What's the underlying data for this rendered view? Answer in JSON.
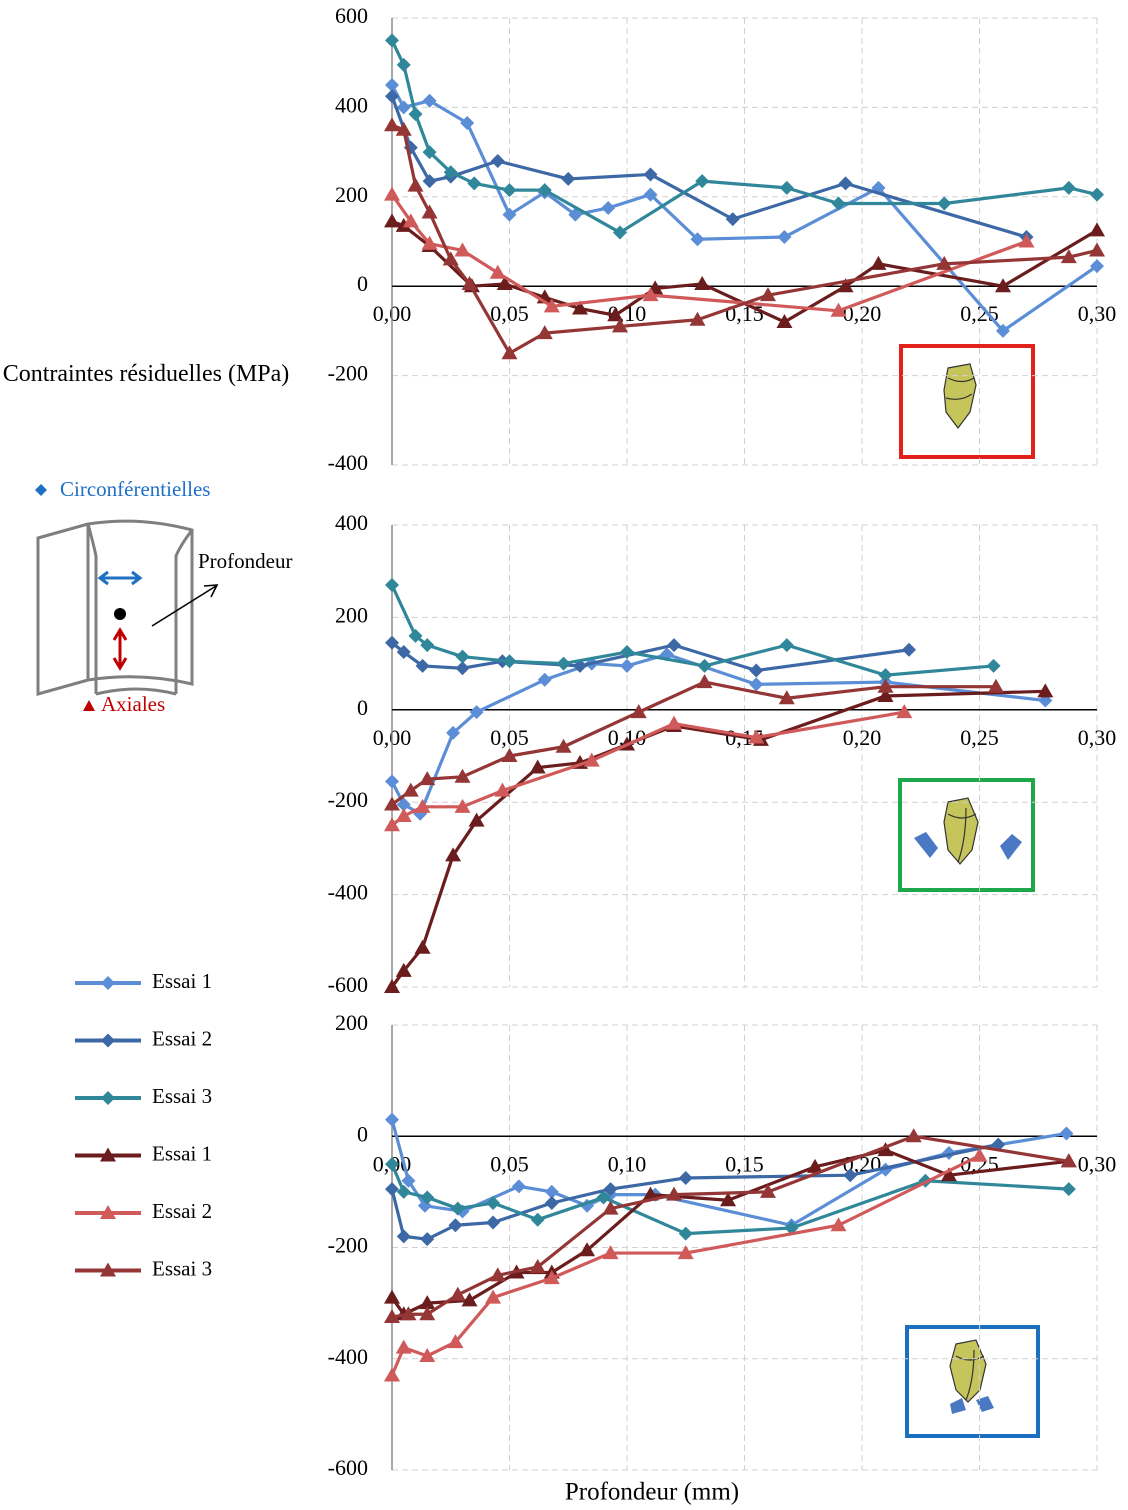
{
  "chart_data": [
    {
      "type": "line",
      "ylabel": "Contraintes résiduelles (MPa)",
      "annotations": [
        "Circonférentielles",
        "Profondeur",
        "Axiales"
      ],
      "xlim": [
        0,
        0.3
      ],
      "xticks": [
        {
          "value": 0,
          "label": "0,00"
        },
        {
          "value": 0.05,
          "label": "0,05"
        },
        {
          "value": 0.1,
          "label": "0,10"
        },
        {
          "value": 0.15,
          "label": "0,15"
        },
        {
          "value": 0.2,
          "label": "0,20"
        },
        {
          "value": 0.25,
          "label": "0,25"
        },
        {
          "value": 0.3,
          "label": "0,30"
        }
      ],
      "ylim": [
        -400,
        600
      ],
      "yticks": [
        -400,
        -200,
        0,
        200,
        400,
        600
      ],
      "grid": true,
      "series": [
        {
          "name": "Essai 1",
          "color": "#5b8ed6",
          "marker": "diamond",
          "x": [
            0,
            0.005,
            0.016,
            0.032,
            0.05,
            0.065,
            0.078,
            0.092,
            0.11,
            0.13,
            0.167,
            0.207,
            0.26,
            0.3
          ],
          "values": [
            450,
            400,
            415,
            365,
            160,
            210,
            160,
            175,
            205,
            105,
            110,
            220,
            -100,
            45
          ]
        },
        {
          "name": "Essai 2",
          "color": "#3d68a6",
          "marker": "diamond",
          "x": [
            0,
            0.008,
            0.016,
            0.025,
            0.045,
            0.075,
            0.11,
            0.145,
            0.193,
            0.27
          ],
          "values": [
            425,
            310,
            235,
            245,
            280,
            240,
            250,
            150,
            230,
            110
          ]
        },
        {
          "name": "Essai 3",
          "color": "#31879a",
          "marker": "diamond",
          "x": [
            0,
            0.005,
            0.01,
            0.016,
            0.025,
            0.035,
            0.05,
            0.065,
            0.097,
            0.132,
            0.168,
            0.19,
            0.235,
            0.288,
            0.3
          ],
          "values": [
            550,
            495,
            385,
            300,
            255,
            230,
            215,
            215,
            120,
            235,
            220,
            185,
            185,
            220,
            205
          ]
        },
        {
          "name": "Essai 1",
          "color": "#6b1c1c",
          "marker": "triangle",
          "x": [
            0,
            0.005,
            0.016,
            0.034,
            0.048,
            0.065,
            0.08,
            0.095,
            0.112,
            0.132,
            0.167,
            0.193,
            0.207,
            0.26,
            0.3
          ],
          "values": [
            145,
            135,
            90,
            0,
            5,
            -25,
            -50,
            -65,
            -5,
            5,
            -80,
            0,
            50,
            0,
            125
          ]
        },
        {
          "name": "Essai 2",
          "color": "#d0595a",
          "marker": "triangle",
          "x": [
            0,
            0.008,
            0.016,
            0.03,
            0.045,
            0.068,
            0.11,
            0.19,
            0.27
          ],
          "values": [
            205,
            145,
            95,
            80,
            30,
            -45,
            -20,
            -55,
            100
          ]
        },
        {
          "name": "Essai 3",
          "color": "#943636",
          "marker": "triangle",
          "x": [
            0,
            0.005,
            0.01,
            0.016,
            0.025,
            0.033,
            0.05,
            0.065,
            0.097,
            0.13,
            0.16,
            0.235,
            0.288,
            0.3
          ],
          "values": [
            360,
            350,
            225,
            165,
            60,
            5,
            -150,
            -105,
            -90,
            -75,
            -20,
            50,
            65,
            80
          ]
        }
      ]
    },
    {
      "type": "line",
      "xlim": [
        0,
        0.3
      ],
      "xticks": [
        {
          "value": 0,
          "label": "0,00"
        },
        {
          "value": 0.05,
          "label": "0,05"
        },
        {
          "value": 0.1,
          "label": "0,10"
        },
        {
          "value": 0.15,
          "label": "0,15"
        },
        {
          "value": 0.2,
          "label": "0,20"
        },
        {
          "value": 0.25,
          "label": "0,25"
        },
        {
          "value": 0.3,
          "label": "0,30"
        }
      ],
      "ylim": [
        -600,
        400
      ],
      "yticks": [
        -600,
        -400,
        -200,
        0,
        200,
        400
      ],
      "grid": true,
      "series": [
        {
          "color": "#5b8ed6",
          "marker": "diamond",
          "x": [
            0,
            0.005,
            0.012,
            0.026,
            0.036,
            0.065,
            0.085,
            0.1,
            0.117,
            0.155,
            0.21,
            0.278
          ],
          "values": [
            -155,
            -205,
            -225,
            -50,
            -5,
            65,
            100,
            95,
            120,
            55,
            60,
            20
          ]
        },
        {
          "color": "#3d68a6",
          "marker": "diamond",
          "x": [
            0,
            0.005,
            0.013,
            0.03,
            0.047,
            0.08,
            0.12,
            0.155,
            0.22
          ],
          "values": [
            145,
            125,
            95,
            90,
            105,
            95,
            140,
            85,
            130
          ]
        },
        {
          "color": "#31879a",
          "marker": "diamond",
          "x": [
            0,
            0.01,
            0.015,
            0.03,
            0.05,
            0.073,
            0.1,
            0.133,
            0.168,
            0.21,
            0.256
          ],
          "values": [
            270,
            160,
            140,
            115,
            105,
            100,
            125,
            95,
            140,
            75,
            95
          ]
        },
        {
          "color": "#6b1c1c",
          "marker": "triangle",
          "x": [
            0,
            0.005,
            0.013,
            0.026,
            0.036,
            0.062,
            0.08,
            0.1,
            0.12,
            0.157,
            0.21,
            0.278
          ],
          "values": [
            -600,
            -565,
            -515,
            -315,
            -240,
            -125,
            -115,
            -75,
            -35,
            -65,
            30,
            40
          ]
        },
        {
          "color": "#d0595a",
          "marker": "triangle",
          "x": [
            0,
            0.005,
            0.013,
            0.03,
            0.047,
            0.085,
            0.12,
            0.155,
            0.218
          ],
          "values": [
            -250,
            -230,
            -210,
            -210,
            -175,
            -110,
            -30,
            -60,
            -5
          ]
        },
        {
          "color": "#943636",
          "marker": "triangle",
          "x": [
            0,
            0.008,
            0.015,
            0.03,
            0.05,
            0.073,
            0.105,
            0.133,
            0.168,
            0.21,
            0.257
          ],
          "values": [
            -205,
            -175,
            -150,
            -145,
            -100,
            -80,
            -5,
            60,
            25,
            50,
            50
          ]
        }
      ]
    },
    {
      "type": "line",
      "xlabel": "Profondeur (mm)",
      "xlim": [
        0,
        0.3
      ],
      "xticks": [
        {
          "value": 0,
          "label": "0,00"
        },
        {
          "value": 0.05,
          "label": "0,05"
        },
        {
          "value": 0.1,
          "label": "0,10"
        },
        {
          "value": 0.15,
          "label": "0,15"
        },
        {
          "value": 0.2,
          "label": "0,20"
        },
        {
          "value": 0.25,
          "label": "0,25"
        },
        {
          "value": 0.3,
          "label": "0,30"
        }
      ],
      "ylim": [
        -600,
        200
      ],
      "yticks": [
        -600,
        -400,
        -200,
        0,
        200
      ],
      "grid": true,
      "series": [
        {
          "color": "#5b8ed6",
          "marker": "diamond",
          "x": [
            0,
            0.007,
            0.014,
            0.03,
            0.054,
            0.068,
            0.083,
            0.093,
            0.112,
            0.17,
            0.21,
            0.237,
            0.287
          ],
          "values": [
            30,
            -80,
            -125,
            -135,
            -90,
            -100,
            -125,
            -105,
            -105,
            -160,
            -60,
            -30,
            5
          ]
        },
        {
          "color": "#3d68a6",
          "marker": "diamond",
          "x": [
            0,
            0.005,
            0.015,
            0.027,
            0.043,
            0.068,
            0.093,
            0.125,
            0.195,
            0.258
          ],
          "values": [
            -95,
            -180,
            -185,
            -160,
            -155,
            -120,
            -95,
            -75,
            -70,
            -15
          ]
        },
        {
          "color": "#31879a",
          "marker": "diamond",
          "x": [
            0,
            0.005,
            0.015,
            0.028,
            0.043,
            0.062,
            0.09,
            0.125,
            0.17,
            0.227,
            0.288
          ],
          "values": [
            -50,
            -100,
            -110,
            -130,
            -120,
            -150,
            -110,
            -175,
            -165,
            -80,
            -95
          ]
        },
        {
          "color": "#6b1c1c",
          "marker": "triangle",
          "x": [
            0,
            0.005,
            0.015,
            0.033,
            0.053,
            0.068,
            0.083,
            0.11,
            0.143,
            0.18,
            0.21,
            0.237,
            0.288
          ],
          "values": [
            -290,
            -320,
            -300,
            -295,
            -245,
            -245,
            -205,
            -105,
            -115,
            -55,
            -25,
            -70,
            -45
          ]
        },
        {
          "color": "#d0595a",
          "marker": "triangle",
          "x": [
            0,
            0.005,
            0.015,
            0.027,
            0.043,
            0.068,
            0.093,
            0.125,
            0.19,
            0.25
          ],
          "values": [
            -430,
            -380,
            -395,
            -370,
            -290,
            -255,
            -210,
            -210,
            -160,
            -35
          ]
        },
        {
          "color": "#943636",
          "marker": "triangle",
          "x": [
            0,
            0.007,
            0.015,
            0.028,
            0.045,
            0.062,
            0.093,
            0.12,
            0.16,
            0.222,
            0.288
          ],
          "values": [
            -325,
            -320,
            -320,
            -285,
            -250,
            -235,
            -130,
            -105,
            -100,
            0,
            -45
          ]
        }
      ]
    }
  ]
}
